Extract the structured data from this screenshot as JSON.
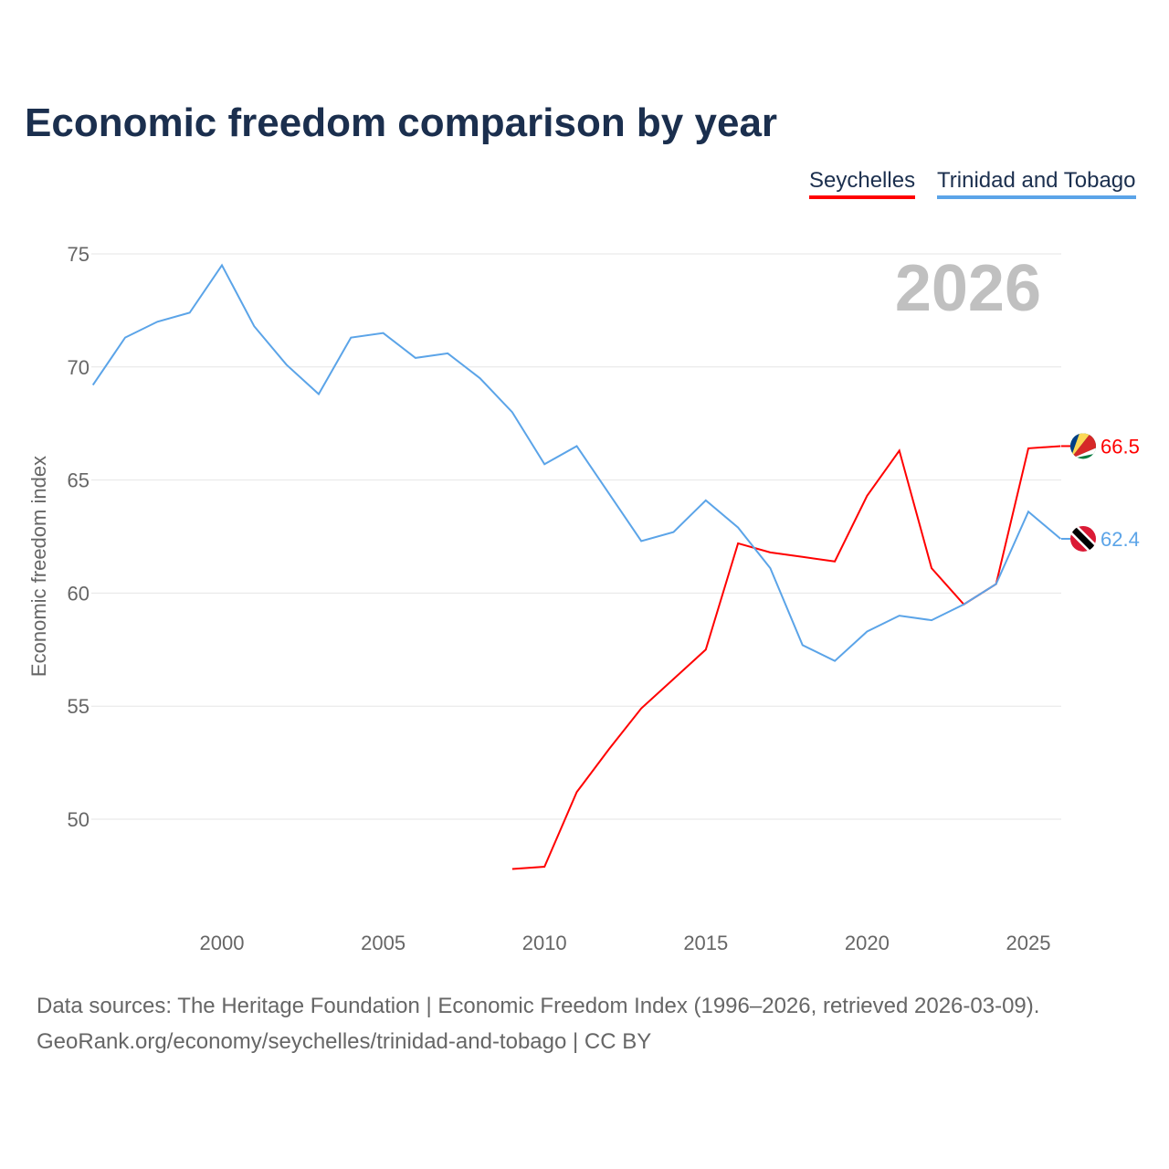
{
  "chart_data": {
    "type": "line",
    "title": "Economic freedom comparison by year",
    "xlabel": "",
    "ylabel": "Economic freedom index",
    "year_watermark": "2026",
    "xlim": [
      1996,
      2026
    ],
    "ylim": [
      45.3,
      77
    ],
    "x_ticks": [
      2000,
      2005,
      2010,
      2015,
      2020,
      2025
    ],
    "y_ticks": [
      50,
      55,
      60,
      65,
      70,
      75
    ],
    "grid": true,
    "legend_position": "top-right",
    "series": [
      {
        "name": "Seychelles",
        "color": "#ff0000",
        "end_label": "66.5",
        "x": [
          2009,
          2010,
          2011,
          2012,
          2013,
          2014,
          2015,
          2016,
          2017,
          2018,
          2019,
          2020,
          2021,
          2022,
          2023,
          2024,
          2025,
          2026
        ],
        "values": [
          47.8,
          47.9,
          51.2,
          53.1,
          54.9,
          56.2,
          57.5,
          62.2,
          61.8,
          61.6,
          61.4,
          64.3,
          66.3,
          61.1,
          59.5,
          60.4,
          66.4,
          66.5
        ]
      },
      {
        "name": "Trinidad and Tobago",
        "color": "#5ba4e8",
        "end_label": "62.4",
        "x": [
          1996,
          1997,
          1998,
          1999,
          2000,
          2001,
          2002,
          2003,
          2004,
          2005,
          2006,
          2007,
          2008,
          2009,
          2010,
          2011,
          2012,
          2013,
          2014,
          2015,
          2016,
          2017,
          2018,
          2019,
          2020,
          2021,
          2022,
          2023,
          2024,
          2025,
          2026
        ],
        "values": [
          69.2,
          71.3,
          72.0,
          72.4,
          74.5,
          71.8,
          70.1,
          68.8,
          71.3,
          71.5,
          70.4,
          70.6,
          69.5,
          68.0,
          65.7,
          66.5,
          64.4,
          62.3,
          62.7,
          64.1,
          62.9,
          61.1,
          57.7,
          57.0,
          58.3,
          59.0,
          58.8,
          59.5,
          60.4,
          63.6,
          62.4
        ]
      }
    ]
  },
  "sources": {
    "line1": "Data sources: The Heritage Foundation | Economic Freedom Index (1996–2026, retrieved 2026-03-09).",
    "line2": "GeoRank.org/economy/seychelles/trinidad-and-tobago | CC BY"
  }
}
